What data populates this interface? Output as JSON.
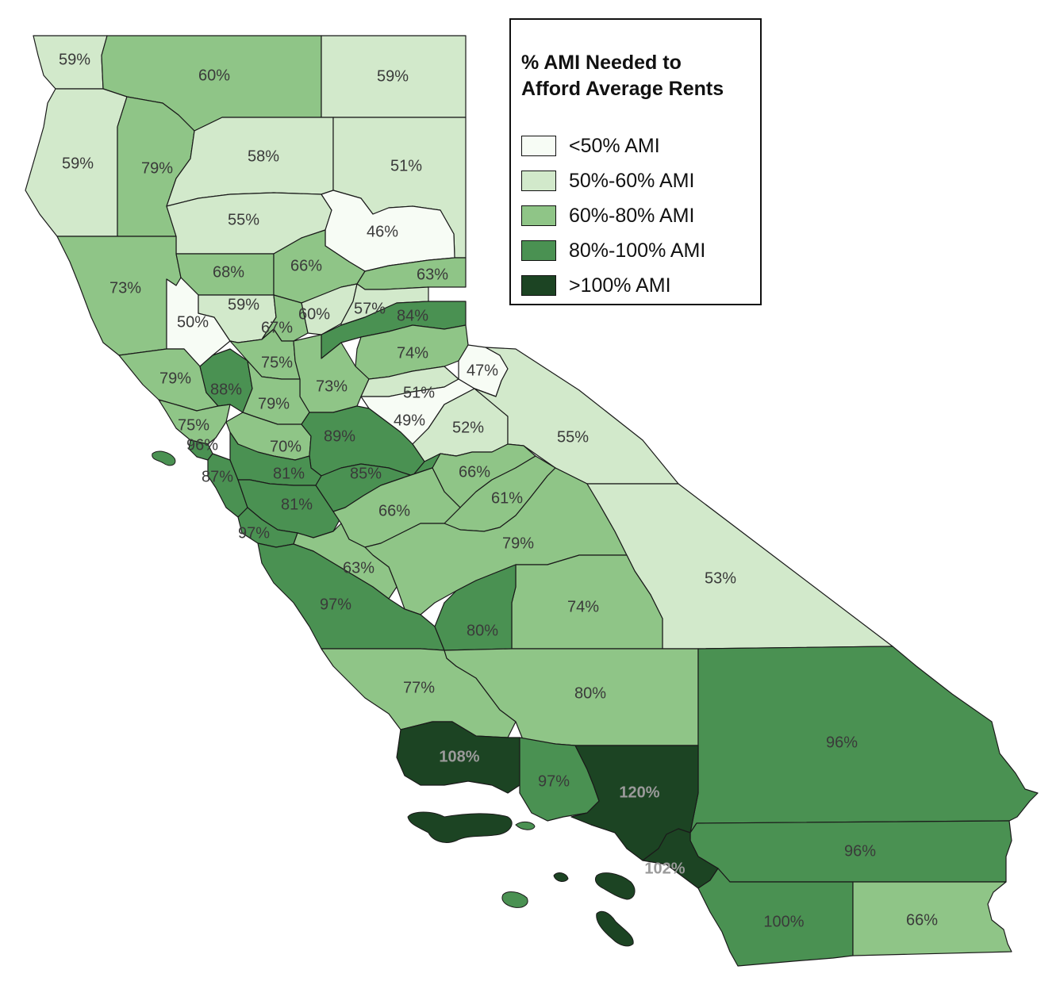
{
  "title_lines": [
    "% AMI Needed to",
    "Afford Average Rents"
  ],
  "legend": [
    {
      "label": "<50% AMI",
      "color": "#f7fcf5"
    },
    {
      "label": "50%-60% AMI",
      "color": "#d2e9cb"
    },
    {
      "label": "60%-80% AMI",
      "color": "#8fc587"
    },
    {
      "label": "80%-100% AMI",
      "color": "#4a9152"
    },
    {
      "label": ">100% AMI",
      "color": "#1c4423"
    }
  ],
  "counties": [
    {
      "id": "del-norte",
      "value": "59%",
      "bin": 1
    },
    {
      "id": "siskiyou",
      "value": "60%",
      "bin": 2
    },
    {
      "id": "modoc",
      "value": "59%",
      "bin": 1
    },
    {
      "id": "humboldt",
      "value": "59%",
      "bin": 1
    },
    {
      "id": "trinity",
      "value": "79%",
      "bin": 2
    },
    {
      "id": "shasta",
      "value": "58%",
      "bin": 1
    },
    {
      "id": "lassen",
      "value": "51%",
      "bin": 1
    },
    {
      "id": "tehama",
      "value": "55%",
      "bin": 1
    },
    {
      "id": "plumas",
      "value": "46%",
      "bin": 0
    },
    {
      "id": "mendocino",
      "value": "73%",
      "bin": 2
    },
    {
      "id": "glenn",
      "value": "68%",
      "bin": 2
    },
    {
      "id": "butte",
      "value": "66%",
      "bin": 2
    },
    {
      "id": "sierra",
      "value": "63%",
      "bin": 2
    },
    {
      "id": "lake",
      "value": "50%",
      "bin": 0
    },
    {
      "id": "colusa",
      "value": "59%",
      "bin": 1
    },
    {
      "id": "yuba",
      "value": "60%",
      "bin": 1
    },
    {
      "id": "nevada",
      "value": "57%",
      "bin": 1
    },
    {
      "id": "placer",
      "value": "84%",
      "bin": 3
    },
    {
      "id": "sutter",
      "value": "67%",
      "bin": 2
    },
    {
      "id": "yolo",
      "value": "75%",
      "bin": 2
    },
    {
      "id": "el-dorado",
      "value": "74%",
      "bin": 2
    },
    {
      "id": "alpine",
      "value": "47%",
      "bin": 0
    },
    {
      "id": "sonoma",
      "value": "79%",
      "bin": 2
    },
    {
      "id": "napa",
      "value": "88%",
      "bin": 3
    },
    {
      "id": "sacramento",
      "value": "73%",
      "bin": 2
    },
    {
      "id": "solano",
      "value": "79%",
      "bin": 2
    },
    {
      "id": "amador",
      "value": "51%",
      "bin": 1
    },
    {
      "id": "calaveras",
      "value": "49%",
      "bin": 0
    },
    {
      "id": "tuolumne",
      "value": "52%",
      "bin": 1
    },
    {
      "id": "mono",
      "value": "55%",
      "bin": 1
    },
    {
      "id": "marin",
      "value": "75%",
      "bin": 2
    },
    {
      "id": "san-francisco",
      "value": "96%",
      "bin": 3
    },
    {
      "id": "contra-costa",
      "value": "70%",
      "bin": 2
    },
    {
      "id": "san-joaquin",
      "value": "89%",
      "bin": 3
    },
    {
      "id": "san-mateo",
      "value": "87%",
      "bin": 3
    },
    {
      "id": "alameda",
      "value": "81%",
      "bin": 3
    },
    {
      "id": "stanislaus",
      "value": "85%",
      "bin": 3
    },
    {
      "id": "mariposa",
      "value": "66%",
      "bin": 2
    },
    {
      "id": "santa-clara",
      "value": "81%",
      "bin": 3
    },
    {
      "id": "madera",
      "value": "61%",
      "bin": 2
    },
    {
      "id": "merced",
      "value": "66%",
      "bin": 2
    },
    {
      "id": "santa-cruz",
      "value": "97%",
      "bin": 3
    },
    {
      "id": "fresno",
      "value": "79%",
      "bin": 2
    },
    {
      "id": "san-benito",
      "value": "63%",
      "bin": 2
    },
    {
      "id": "inyo",
      "value": "53%",
      "bin": 1
    },
    {
      "id": "monterey",
      "value": "97%",
      "bin": 3
    },
    {
      "id": "tulare",
      "value": "74%",
      "bin": 2
    },
    {
      "id": "kings",
      "value": "80%",
      "bin": 3
    },
    {
      "id": "san-luis-obispo",
      "value": "77%",
      "bin": 2
    },
    {
      "id": "kern",
      "value": "80%",
      "bin": 2
    },
    {
      "id": "san-bernardino",
      "value": "96%",
      "bin": 3
    },
    {
      "id": "santa-barbara",
      "value": "108%",
      "bin": 4
    },
    {
      "id": "ventura",
      "value": "97%",
      "bin": 3
    },
    {
      "id": "los-angeles",
      "value": "120%",
      "bin": 4
    },
    {
      "id": "riverside",
      "value": "96%",
      "bin": 3
    },
    {
      "id": "orange",
      "value": "102%",
      "bin": 4
    },
    {
      "id": "san-diego",
      "value": "100%",
      "bin": 3
    },
    {
      "id": "imperial",
      "value": "66%",
      "bin": 2
    }
  ]
}
